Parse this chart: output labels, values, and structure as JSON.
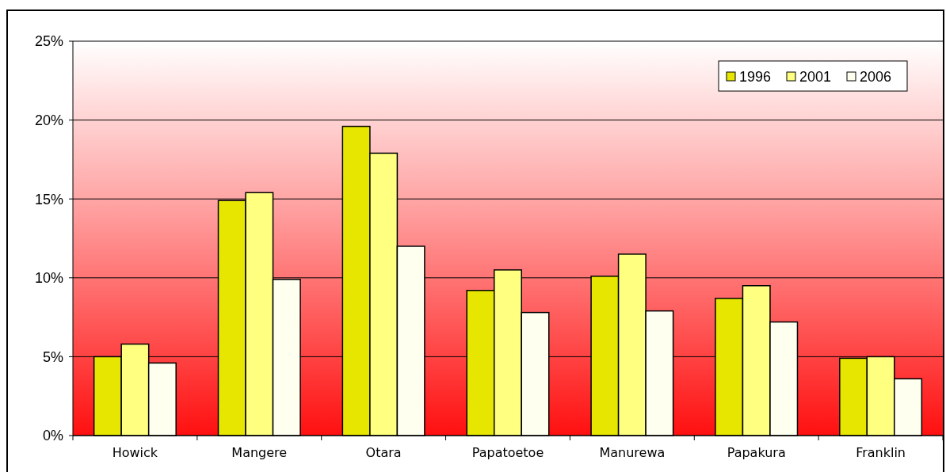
{
  "chart_data": {
    "type": "bar",
    "categories": [
      "Howick",
      "Mangere",
      "Otara",
      "Papatoetoe",
      "Manurewa",
      "Papakura",
      "Franklin"
    ],
    "series": [
      {
        "name": "1996",
        "color": "#e6e600",
        "values": [
          5.0,
          14.9,
          19.6,
          9.2,
          10.1,
          8.7,
          4.9
        ]
      },
      {
        "name": "2001",
        "color": "#ffff80",
        "values": [
          5.8,
          15.4,
          17.9,
          10.5,
          11.5,
          9.5,
          5.0
        ]
      },
      {
        "name": "2006",
        "color": "#fffff0",
        "values": [
          4.6,
          9.9,
          12.0,
          7.8,
          7.9,
          7.2,
          3.6
        ]
      }
    ],
    "ylim": [
      0,
      25
    ],
    "yticks": [
      {
        "value": 0,
        "label": "0%"
      },
      {
        "value": 5,
        "label": "5%"
      },
      {
        "value": 10,
        "label": "10%"
      },
      {
        "value": 15,
        "label": "15%"
      },
      {
        "value": 20,
        "label": "20%"
      },
      {
        "value": 25,
        "label": "25%"
      }
    ],
    "grid": "y",
    "legend": "top right"
  }
}
